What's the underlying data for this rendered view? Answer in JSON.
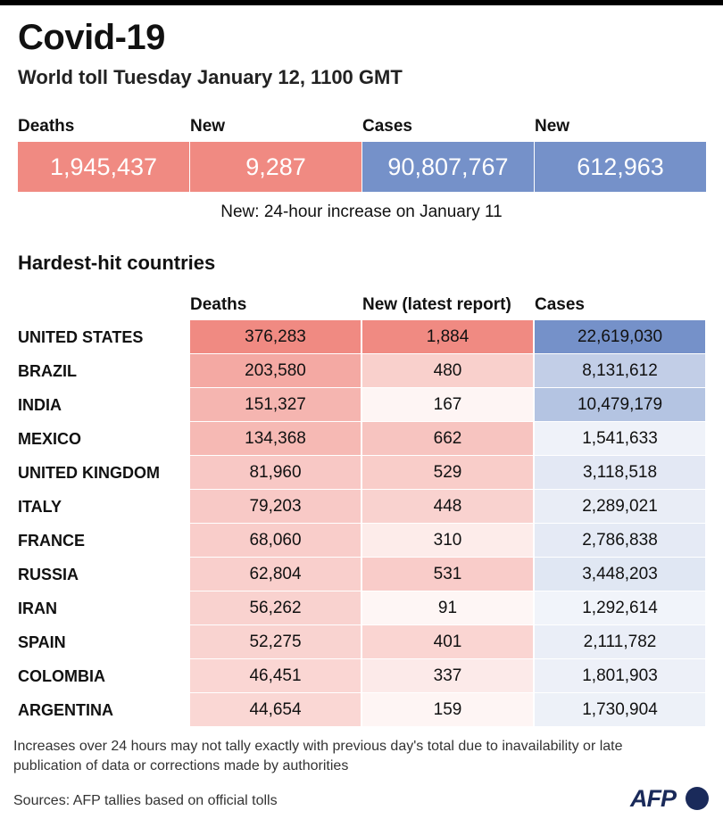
{
  "title": "Covid-19",
  "subtitle": "World toll Tuesday January 12, 1100 GMT",
  "summary": [
    {
      "label": "Deaths",
      "value": "1,945,437",
      "color": "#f08a82"
    },
    {
      "label": "New",
      "value": "9,287",
      "color": "#f08a82"
    },
    {
      "label": "Cases",
      "value": "90,807,767",
      "color": "#7591c9"
    },
    {
      "label": "New",
      "value": "612,963",
      "color": "#7591c9"
    }
  ],
  "note": "New: 24-hour increase on January 11",
  "section_title": "Hardest-hit countries",
  "footnote": "Increases over 24 hours may not tally exactly with previous day's total due to inavailability or late publication of data or corrections made by authorities",
  "source": "Sources: AFP tallies based on official tolls",
  "logo": "AFP",
  "chart_data": {
    "type": "table",
    "columns": [
      "Deaths",
      "New (latest report)",
      "Cases"
    ],
    "rows": [
      {
        "country": "UNITED STATES",
        "deaths": 376283,
        "new": 1884,
        "cases": 22619030
      },
      {
        "country": "BRAZIL",
        "deaths": 203580,
        "new": 480,
        "cases": 8131612
      },
      {
        "country": "INDIA",
        "deaths": 151327,
        "new": 167,
        "cases": 10479179
      },
      {
        "country": "MEXICO",
        "deaths": 134368,
        "new": 662,
        "cases": 1541633
      },
      {
        "country": "UNITED KINGDOM",
        "deaths": 81960,
        "new": 529,
        "cases": 3118518
      },
      {
        "country": "ITALY",
        "deaths": 79203,
        "new": 448,
        "cases": 2289021
      },
      {
        "country": "FRANCE",
        "deaths": 68060,
        "new": 310,
        "cases": 2786838
      },
      {
        "country": "RUSSIA",
        "deaths": 62804,
        "new": 531,
        "cases": 3448203
      },
      {
        "country": "IRAN",
        "deaths": 56262,
        "new": 91,
        "cases": 1292614
      },
      {
        "country": "SPAIN",
        "deaths": 52275,
        "new": 401,
        "cases": 2111782
      },
      {
        "country": "COLOMBIA",
        "deaths": 46451,
        "new": 337,
        "cases": 1801903
      },
      {
        "country": "ARGENTINA",
        "deaths": 44654,
        "new": 159,
        "cases": 1730904
      }
    ],
    "colors": {
      "deaths": "#f08a82",
      "new": "#f08a82",
      "cases": "#7591c9"
    }
  }
}
